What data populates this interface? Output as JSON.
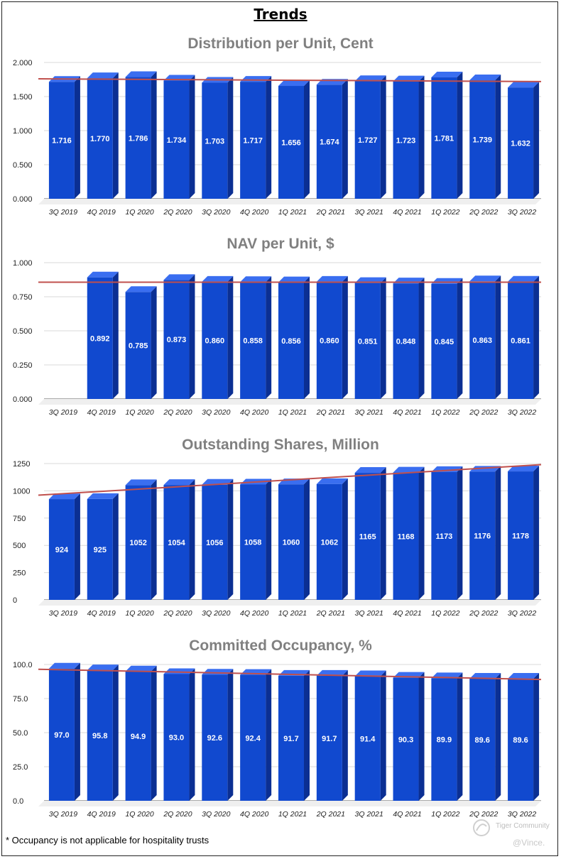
{
  "page_title": "Trends",
  "footnote": "* Occupancy is not applicable for hospitality trusts",
  "watermark": {
    "brand": "Tiger Community",
    "handle": "@Vince."
  },
  "colors": {
    "bar_front": "#1149cf",
    "bar_top": "#3a6ef0",
    "bar_side": "#0b2f93",
    "trendline": "#c0504d",
    "title": "#808080",
    "grid": "#d9d9d9"
  },
  "chart_data": [
    {
      "type": "bar",
      "title": "Distribution per Unit, Cent",
      "categories": [
        "3Q 2019",
        "4Q 2019",
        "1Q 2020",
        "2Q 2020",
        "3Q 2020",
        "4Q 2020",
        "1Q 2021",
        "2Q 2021",
        "3Q 2021",
        "4Q 2021",
        "1Q 2022",
        "2Q 2022",
        "3Q 2022"
      ],
      "values": [
        1.716,
        1.77,
        1.786,
        1.734,
        1.703,
        1.717,
        1.656,
        1.674,
        1.727,
        1.723,
        1.781,
        1.739,
        1.632
      ],
      "labels": [
        "1.716",
        "1.770",
        "1.786",
        "1.734",
        "1.703",
        "1.717",
        "1.656",
        "1.674",
        "1.727",
        "1.723",
        "1.781",
        "1.739",
        "1.632"
      ],
      "yticks": [
        "0.000",
        "0.500",
        "1.000",
        "1.500",
        "2.000"
      ],
      "ylim": [
        0,
        2.0
      ],
      "trendline": [
        1.76,
        1.72
      ]
    },
    {
      "type": "bar",
      "title": "NAV per Unit, $",
      "categories": [
        "3Q 2019",
        "4Q 2019",
        "1Q 2020",
        "2Q 2020",
        "3Q 2020",
        "4Q 2020",
        "1Q 2021",
        "2Q 2021",
        "3Q 2021",
        "4Q 2021",
        "1Q 2022",
        "2Q 2022",
        "3Q 2022"
      ],
      "values": [
        null,
        0.892,
        0.785,
        0.873,
        0.86,
        0.858,
        0.856,
        0.86,
        0.851,
        0.848,
        0.845,
        0.863,
        0.861
      ],
      "labels": [
        "",
        "0.892",
        "0.785",
        "0.873",
        "0.860",
        "0.858",
        "0.856",
        "0.860",
        "0.851",
        "0.848",
        "0.845",
        "0.863",
        "0.861"
      ],
      "yticks": [
        "0.000",
        "0.250",
        "0.500",
        "0.750",
        "1.000"
      ],
      "ylim": [
        0,
        1.0
      ],
      "trendline": [
        0.857,
        0.857
      ]
    },
    {
      "type": "bar",
      "title": "Outstanding Shares, Million",
      "categories": [
        "3Q 2019",
        "4Q 2019",
        "1Q 2020",
        "2Q 2020",
        "3Q 2020",
        "4Q 2020",
        "1Q 2021",
        "2Q 2021",
        "3Q 2021",
        "4Q 2021",
        "1Q 2022",
        "2Q 2022",
        "3Q 2022"
      ],
      "values": [
        924,
        925,
        1052,
        1054,
        1056,
        1058,
        1060,
        1062,
        1165,
        1168,
        1173,
        1176,
        1178
      ],
      "labels": [
        "924",
        "925",
        "1052",
        "1054",
        "1056",
        "1058",
        "1060",
        "1062",
        "1165",
        "1168",
        "1173",
        "1176",
        "1178"
      ],
      "yticks": [
        "0",
        "250",
        "500",
        "750",
        "1000",
        "1250"
      ],
      "ylim": [
        0,
        1250
      ],
      "trendline": [
        960,
        1240
      ]
    },
    {
      "type": "bar",
      "title": "Committed Occupancy, %",
      "categories": [
        "3Q 2019",
        "4Q 2019",
        "1Q 2020",
        "2Q 2020",
        "3Q 2020",
        "4Q 2020",
        "1Q 2021",
        "2Q 2021",
        "3Q 2021",
        "4Q 2021",
        "1Q 2022",
        "2Q 2022",
        "3Q 2022"
      ],
      "values": [
        97.0,
        95.8,
        94.9,
        93.0,
        92.6,
        92.4,
        91.7,
        91.7,
        91.4,
        90.3,
        89.9,
        89.6,
        89.6
      ],
      "labels": [
        "97.0",
        "95.8",
        "94.9",
        "93.0",
        "92.6",
        "92.4",
        "91.7",
        "91.7",
        "91.4",
        "90.3",
        "89.9",
        "89.6",
        "89.6"
      ],
      "yticks": [
        "0.0",
        "25.0",
        "50.0",
        "75.0",
        "100.0"
      ],
      "ylim": [
        0,
        100
      ],
      "trendline": [
        96.5,
        89.0
      ]
    }
  ]
}
